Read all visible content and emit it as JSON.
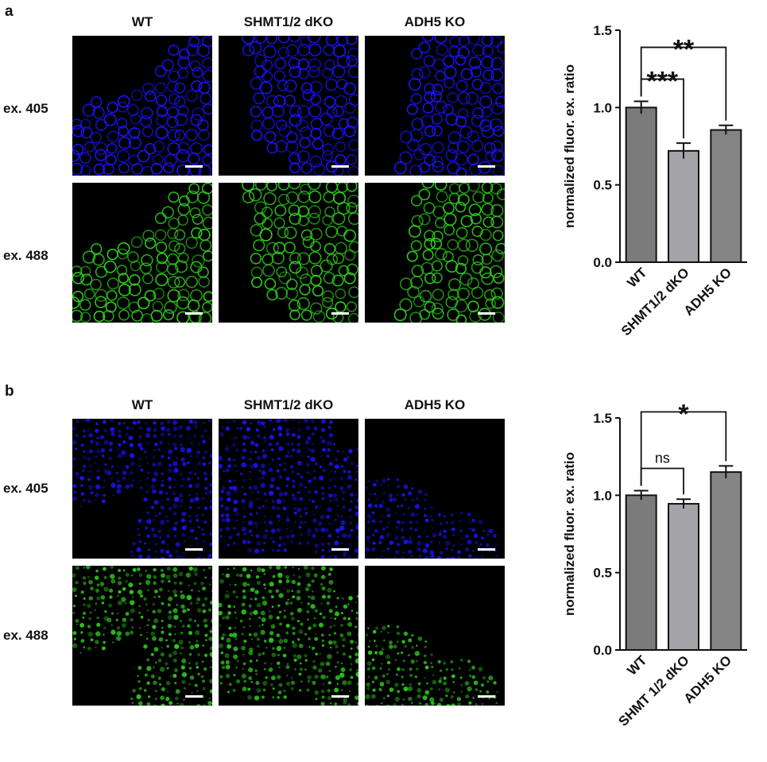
{
  "panels": [
    {
      "letter": "a",
      "columns": [
        "WT",
        "SHMT1/2 dKO",
        "ADH5 KO"
      ],
      "rows": [
        "ex. 405",
        "ex. 488"
      ],
      "chart_data": {
        "type": "bar",
        "categories": [
          "WT",
          "SHMT1/2 dKO",
          "ADH5 KO"
        ],
        "values": [
          1.0,
          0.72,
          0.855
        ],
        "errors": [
          0.04,
          0.05,
          0.03
        ],
        "ylabel": "normalized fluor. ex. ratio",
        "ylim": [
          0,
          1.5
        ],
        "yticks": [
          "0.0",
          "0.5",
          "1.0",
          "1.5"
        ],
        "significance": [
          {
            "from": "WT",
            "to": "SHMT1/2 dKO",
            "label": "***"
          },
          {
            "from": "WT",
            "to": "ADH5 KO",
            "label": "**"
          }
        ],
        "bar_colors": [
          "#7b7b7b",
          "#a3a3a8",
          "#858585"
        ]
      }
    },
    {
      "letter": "b",
      "columns": [
        "WT",
        "SHMT1/2 dKO",
        "ADH5 KO"
      ],
      "rows": [
        "ex. 405",
        "ex. 488"
      ],
      "chart_data": {
        "type": "bar",
        "categories": [
          "WT",
          "SHMT 1/2 dKO",
          "ADH5 KO"
        ],
        "values": [
          1.0,
          0.945,
          1.15
        ],
        "errors": [
          0.03,
          0.03,
          0.04
        ],
        "ylabel": "normalized fluor. ex. ratio",
        "ylim": [
          0,
          1.5
        ],
        "yticks": [
          "0.0",
          "0.5",
          "1.0",
          "1.5"
        ],
        "significance": [
          {
            "from": "WT",
            "to": "SHMT 1/2 dKO",
            "label": "ns"
          },
          {
            "from": "WT",
            "to": "ADH5 KO",
            "label": "*"
          }
        ],
        "bar_colors": [
          "#7b7b7b",
          "#a3a3a8",
          "#858585"
        ]
      }
    }
  ],
  "colors": {
    "blue_channel": "#1a14ff",
    "green_channel": "#2fd11c",
    "background": "#000000"
  }
}
